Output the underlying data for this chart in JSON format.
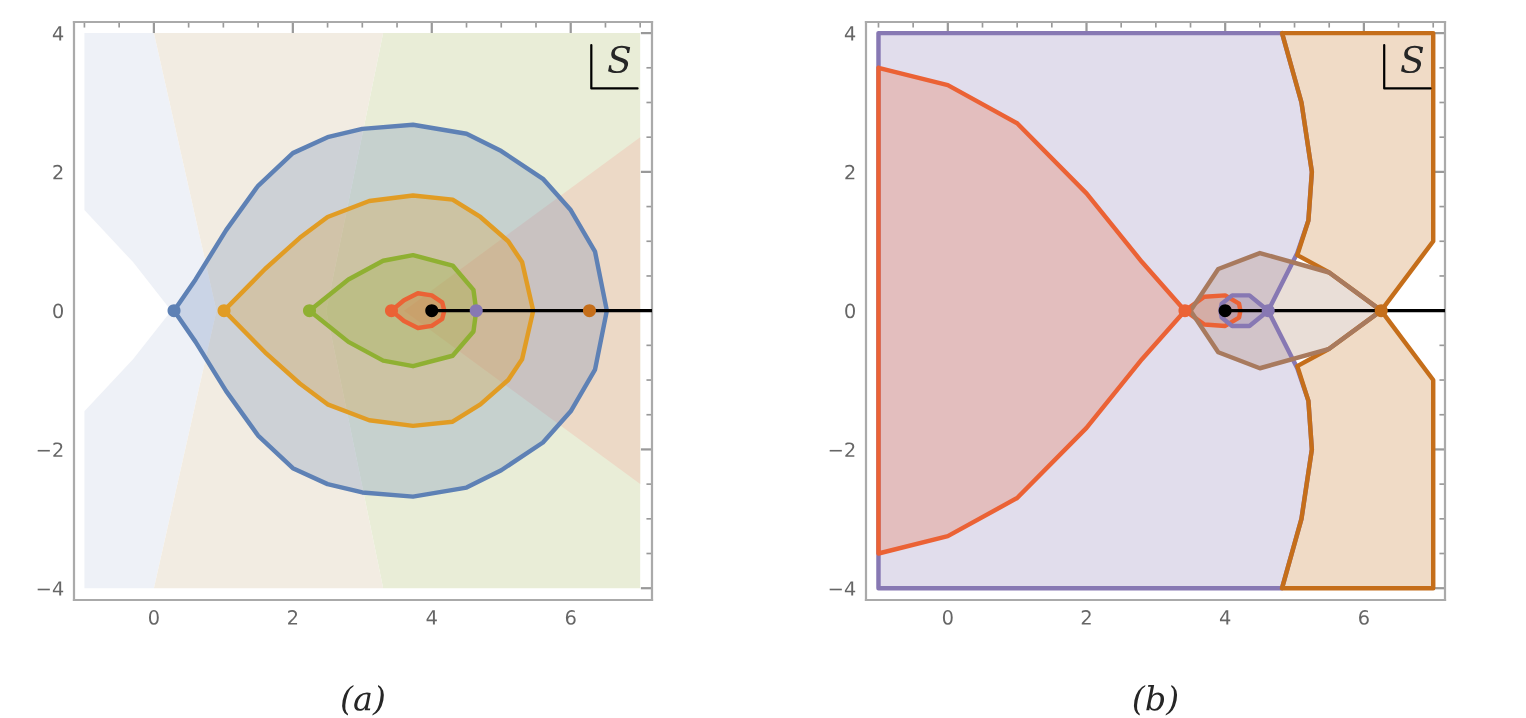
{
  "chart_data": [
    {
      "type": "area",
      "xlim": [
        -1.15,
        7.17
      ],
      "ylim": [
        -4.17,
        4.16
      ],
      "xticks": [
        0,
        2,
        4,
        6
      ],
      "yticks": [
        -4,
        -2,
        0,
        2,
        4
      ],
      "grid": false,
      "annotations": [
        "S",
        "(a)"
      ],
      "series": [
        {
          "color": "#eef1f7",
          "x": [
            -1,
            0,
            0.9,
            0,
            -1,
            -1,
            -0.3,
            0.25,
            -0.3,
            -1,
            -1
          ],
          "values": [
            4,
            4,
            0,
            -4,
            -4,
            -1.45,
            -0.7,
            0,
            0.7,
            1.45,
            4
          ]
        },
        {
          "color": "#f2ece2",
          "x": [
            0,
            3.3,
            2.48,
            3.3,
            0,
            0.9,
            0
          ],
          "values": [
            4,
            4,
            0,
            -4,
            -4,
            0,
            4
          ]
        },
        {
          "color": "#e9edd7",
          "x": [
            3.3,
            7,
            7,
            3.3,
            2.48,
            3.3
          ],
          "values": [
            4,
            4,
            -4,
            -4,
            0,
            4
          ]
        },
        {
          "color": "#ecd9c6",
          "x": [
            7,
            3.6,
            7,
            7
          ],
          "values": [
            2.5,
            0,
            -2.5,
            2.5
          ]
        },
        {
          "line_style": "solid",
          "color": "#5e81b5",
          "x": [
            0.29,
            0.6,
            1.04,
            1.5,
            2,
            2.5,
            3,
            3.73,
            4.5,
            5,
            5.6,
            6,
            6.35,
            6.52,
            6.35,
            6,
            5.6,
            5,
            4.5,
            3.73,
            3,
            2.5,
            2,
            1.5,
            1.04,
            0.6,
            0.29
          ],
          "values": [
            0,
            0.45,
            1.16,
            1.8,
            2.27,
            2.5,
            2.62,
            2.68,
            2.55,
            2.3,
            1.9,
            1.45,
            0.85,
            0,
            -0.85,
            -1.45,
            -1.9,
            -2.3,
            -2.55,
            -2.68,
            -2.62,
            -2.5,
            -2.27,
            -1.8,
            -1.16,
            -0.45,
            0
          ]
        },
        {
          "line_style": "solid",
          "color": "#e19c24",
          "x": [
            1.01,
            1.6,
            2.1,
            2.5,
            3.1,
            3.73,
            4.3,
            4.7,
            5.1,
            5.3,
            5.46,
            5.3,
            5.1,
            4.7,
            4.3,
            3.73,
            3.1,
            2.5,
            2.1,
            1.6,
            1.01
          ],
          "values": [
            0,
            0.6,
            1.05,
            1.35,
            1.58,
            1.66,
            1.6,
            1.35,
            1.0,
            0.7,
            0,
            -0.7,
            -1.0,
            -1.35,
            -1.6,
            -1.66,
            -1.58,
            -1.35,
            -1.05,
            -0.6,
            0
          ]
        },
        {
          "line_style": "solid",
          "color": "#8fb032",
          "x": [
            2.24,
            2.8,
            3.3,
            3.73,
            4.3,
            4.6,
            4.64,
            4.6,
            4.3,
            3.73,
            3.3,
            2.8,
            2.24
          ],
          "values": [
            0,
            0.45,
            0.72,
            0.8,
            0.65,
            0.3,
            0,
            -0.3,
            -0.65,
            -0.8,
            -0.72,
            -0.45,
            0
          ]
        },
        {
          "line_style": "solid",
          "color": "#eb6235",
          "x": [
            3.42,
            3.6,
            3.8,
            4.0,
            4.15,
            4.18,
            4.15,
            4.0,
            3.8,
            3.6,
            3.42
          ],
          "values": [
            0,
            0.15,
            0.25,
            0.22,
            0.12,
            0,
            -0.12,
            -0.22,
            -0.25,
            -0.15,
            0
          ]
        },
        {
          "type": "line",
          "color": "#000000",
          "x": [
            4,
            7.17
          ],
          "values": [
            0,
            0
          ]
        },
        {
          "type": "scatter",
          "x": [
            0.29,
            1.01,
            2.24,
            3.42,
            4.64,
            6.27,
            4
          ],
          "values": [
            0,
            0,
            0,
            0,
            0,
            0,
            0
          ],
          "colors": [
            "#5e81b5",
            "#e19c24",
            "#8fb032",
            "#eb6235",
            "#8778b3",
            "#c56e1a",
            "#000000"
          ]
        }
      ]
    },
    {
      "type": "area",
      "xlim": [
        -1.18,
        7.17
      ],
      "ylim": [
        -4.17,
        4.16
      ],
      "xticks": [
        0,
        2,
        4,
        6
      ],
      "yticks": [
        -4,
        -2,
        0,
        2,
        4
      ],
      "grid": false,
      "annotations": [
        "S",
        "(b)"
      ],
      "series": [
        {
          "line_style": "solid",
          "color": "#8778b3",
          "x": [
            -1,
            4.82,
            5.1,
            5.25,
            5.2,
            5.04,
            4.62,
            5.04,
            5.2,
            5.25,
            5.1,
            4.82,
            -1,
            -1
          ],
          "values": [
            4,
            4,
            3,
            2,
            1.3,
            0.83,
            0,
            -0.83,
            -1.3,
            -2,
            -3,
            -4,
            -4,
            4
          ]
        },
        {
          "line_style": "solid",
          "color": "#c56e1a",
          "x": [
            4.82,
            7,
            7,
            6.25,
            5.5,
            5.04,
            5.2,
            5.25,
            5.1,
            4.82
          ],
          "values": [
            4,
            4,
            1,
            0,
            0.55,
            0.8,
            1.3,
            2,
            3,
            4
          ]
        },
        {
          "line_style": "solid",
          "color": "#c56e1a",
          "x": [
            4.82,
            7,
            7,
            6.25,
            5.5,
            5.04,
            5.2,
            5.25,
            5.1,
            4.82
          ],
          "values": [
            -4,
            -4,
            -1,
            0,
            -0.55,
            -0.8,
            -1.3,
            -2,
            -3,
            -4
          ]
        },
        {
          "line_style": "solid",
          "color": "#eb6235",
          "x": [
            -1,
            0,
            1,
            2,
            2.8,
            3.42,
            2.8,
            2,
            1,
            0,
            -1,
            -1
          ],
          "values": [
            3.5,
            3.25,
            2.7,
            1.69,
            0.7,
            0,
            -0.7,
            -1.69,
            -2.7,
            -3.25,
            -3.5,
            3.5
          ]
        },
        {
          "line_style": "solid",
          "color": "#eb6235",
          "x": [
            3.42,
            3.7,
            4.0,
            4.2,
            4.22,
            4.2,
            4.0,
            3.7,
            3.42
          ],
          "values": [
            0,
            0.2,
            0.22,
            0.1,
            0,
            -0.1,
            -0.22,
            -0.2,
            0
          ]
        },
        {
          "line_style": "solid",
          "color": "#a87a5e",
          "x": [
            6.25,
            5.5,
            4.5,
            3.9,
            3.5,
            3.9,
            4.5,
            5.5,
            6.25
          ],
          "values": [
            0,
            0.55,
            0.83,
            0.6,
            0,
            -0.6,
            -0.83,
            -0.55,
            0
          ]
        },
        {
          "line_style": "solid",
          "color": "#8778b3",
          "x": [
            4.62,
            4.35,
            4.1,
            3.95,
            3.93,
            3.95,
            4.1,
            4.35,
            4.62
          ],
          "values": [
            0,
            0.22,
            0.22,
            0.1,
            0,
            -0.1,
            -0.22,
            -0.22,
            0
          ]
        },
        {
          "type": "line",
          "color": "#000000",
          "x": [
            4,
            7.17
          ],
          "values": [
            0,
            0
          ]
        },
        {
          "type": "scatter",
          "x": [
            3.42,
            4.62,
            6.25,
            4
          ],
          "values": [
            0,
            0,
            0,
            0
          ],
          "colors": [
            "#eb6235",
            "#8778b3",
            "#c56e1a",
            "#000000"
          ]
        }
      ]
    }
  ]
}
